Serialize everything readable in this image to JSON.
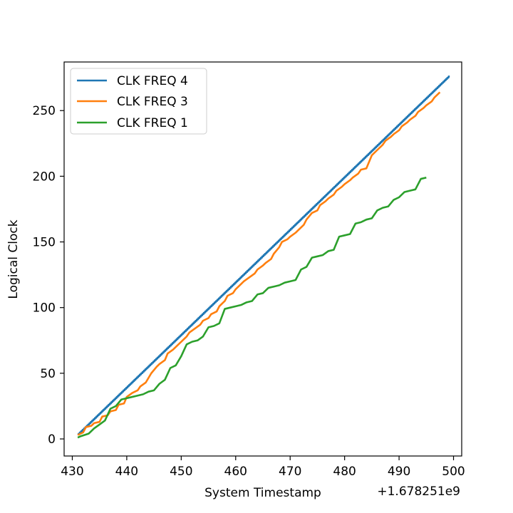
{
  "chart_data": {
    "type": "line",
    "title": "",
    "xlabel": "System Timestamp",
    "ylabel": "Logical Clock",
    "x_offset_label": "+1.678251e9",
    "xlim": [
      428.5,
      501.5
    ],
    "ylim": [
      -13,
      287
    ],
    "xticks": [
      430,
      440,
      450,
      460,
      470,
      480,
      490,
      500
    ],
    "yticks": [
      0,
      50,
      100,
      150,
      200,
      250
    ],
    "legend_position": "top-left",
    "series": [
      {
        "name": "CLK FREQ 4",
        "color": "#1f77b4",
        "step_width": 0.25,
        "x_start": 431.1,
        "x_end": 499.3,
        "y_start": 3,
        "y_end": 276
      },
      {
        "name": "CLK FREQ 3",
        "color": "#ff7f0e",
        "points": [
          [
            431,
            3
          ],
          [
            432,
            5
          ],
          [
            432.5,
            9
          ],
          [
            433.5,
            10
          ],
          [
            434,
            12
          ],
          [
            435,
            13
          ],
          [
            435.5,
            17
          ],
          [
            436.5,
            18
          ],
          [
            437,
            21
          ],
          [
            438,
            22
          ],
          [
            438.5,
            26
          ],
          [
            439.5,
            27
          ],
          [
            440,
            32
          ],
          [
            441,
            35
          ],
          [
            442,
            37
          ],
          [
            442.5,
            40
          ],
          [
            443.5,
            43
          ],
          [
            444.5,
            50
          ],
          [
            445.5,
            55
          ],
          [
            446,
            57
          ],
          [
            447,
            60
          ],
          [
            447.5,
            65
          ],
          [
            448.5,
            68
          ],
          [
            449.5,
            72
          ],
          [
            450,
            74
          ],
          [
            451,
            78
          ],
          [
            451.5,
            81
          ],
          [
            452.5,
            84
          ],
          [
            453.5,
            87
          ],
          [
            454,
            90
          ],
          [
            455,
            92
          ],
          [
            455.5,
            95
          ],
          [
            456.5,
            97
          ],
          [
            457,
            101
          ],
          [
            458,
            105
          ],
          [
            458.5,
            109
          ],
          [
            459.5,
            111
          ],
          [
            460,
            114
          ],
          [
            461,
            118
          ],
          [
            461.5,
            120
          ],
          [
            462.5,
            123
          ],
          [
            463.5,
            126
          ],
          [
            464,
            129
          ],
          [
            465,
            132
          ],
          [
            465.5,
            134
          ],
          [
            466.5,
            137
          ],
          [
            467,
            141
          ],
          [
            468,
            146
          ],
          [
            468.5,
            150
          ],
          [
            469.5,
            152
          ],
          [
            470,
            154
          ],
          [
            471,
            157
          ],
          [
            471.5,
            159
          ],
          [
            472.5,
            163
          ],
          [
            473,
            167
          ],
          [
            474,
            172
          ],
          [
            475,
            174
          ],
          [
            475.5,
            178
          ],
          [
            476.5,
            181
          ],
          [
            477,
            183
          ],
          [
            478,
            186
          ],
          [
            478.5,
            189
          ],
          [
            479.5,
            192
          ],
          [
            480,
            194
          ],
          [
            481,
            197
          ],
          [
            481.5,
            199
          ],
          [
            482.5,
            202
          ],
          [
            483,
            205
          ],
          [
            484,
            206
          ],
          [
            485,
            216
          ],
          [
            486,
            220
          ],
          [
            487,
            224
          ],
          [
            487.5,
            227
          ],
          [
            488.5,
            230
          ],
          [
            489,
            232
          ],
          [
            490,
            235
          ],
          [
            490.5,
            238
          ],
          [
            491.5,
            241
          ],
          [
            492,
            243
          ],
          [
            493,
            246
          ],
          [
            493.5,
            249
          ],
          [
            494.5,
            252
          ],
          [
            495,
            254
          ],
          [
            496,
            257
          ],
          [
            496.5,
            260
          ],
          [
            497.5,
            264
          ]
        ]
      },
      {
        "name": "CLK FREQ 1",
        "color": "#2ca02c",
        "points": [
          [
            431,
            1
          ],
          [
            431.5,
            2
          ],
          [
            433,
            4
          ],
          [
            434,
            8
          ],
          [
            435,
            11
          ],
          [
            436,
            14
          ],
          [
            437,
            23
          ],
          [
            438,
            25
          ],
          [
            439,
            30
          ],
          [
            440,
            31
          ],
          [
            441,
            32
          ],
          [
            442,
            33
          ],
          [
            443,
            34
          ],
          [
            444,
            36
          ],
          [
            445,
            37
          ],
          [
            446,
            42
          ],
          [
            447,
            45
          ],
          [
            448,
            54
          ],
          [
            449,
            56
          ],
          [
            450,
            63
          ],
          [
            451,
            72
          ],
          [
            452,
            74
          ],
          [
            453,
            75
          ],
          [
            454,
            78
          ],
          [
            455,
            85
          ],
          [
            456,
            86
          ],
          [
            457,
            88
          ],
          [
            458,
            99
          ],
          [
            459,
            100
          ],
          [
            460,
            101
          ],
          [
            461,
            102
          ],
          [
            462,
            104
          ],
          [
            463,
            105
          ],
          [
            464,
            110
          ],
          [
            465,
            111
          ],
          [
            466,
            115
          ],
          [
            467,
            116
          ],
          [
            468,
            117
          ],
          [
            469,
            119
          ],
          [
            470,
            120
          ],
          [
            471,
            121
          ],
          [
            472,
            129
          ],
          [
            473,
            131
          ],
          [
            474,
            138
          ],
          [
            475,
            139
          ],
          [
            476,
            140
          ],
          [
            477,
            143
          ],
          [
            478,
            144
          ],
          [
            479,
            154
          ],
          [
            480,
            155
          ],
          [
            481,
            156
          ],
          [
            482,
            164
          ],
          [
            483,
            165
          ],
          [
            484,
            167
          ],
          [
            485,
            168
          ],
          [
            486,
            174
          ],
          [
            487,
            176
          ],
          [
            488,
            177
          ],
          [
            489,
            182
          ],
          [
            490,
            184
          ],
          [
            491,
            188
          ],
          [
            492,
            189
          ],
          [
            493,
            190
          ],
          [
            494,
            198
          ],
          [
            495,
            199
          ]
        ]
      }
    ]
  }
}
